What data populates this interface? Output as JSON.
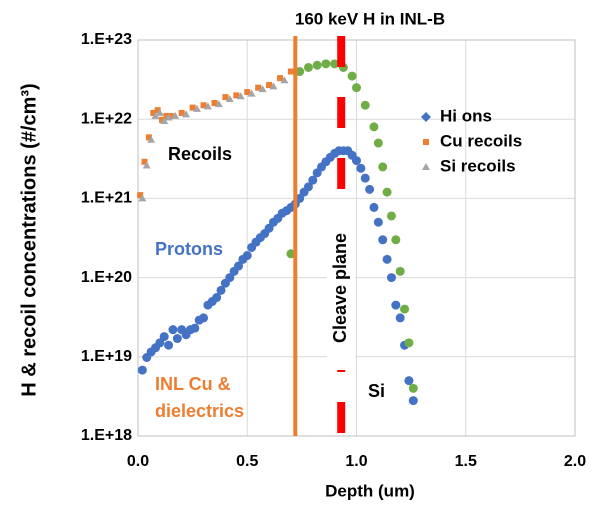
{
  "chart_data": {
    "type": "scatter",
    "title": "160 keV H in INL-B",
    "x_label": "Depth (um)",
    "y_label": "H & recoil concentrations (#/cm³)",
    "log_y": true,
    "grid": true,
    "legend": "right",
    "xlim": [
      0,
      2
    ],
    "ylim": [
      1e+18,
      1e+23
    ],
    "xticks": [
      {
        "value": 0,
        "label": "0.0"
      },
      0.5,
      {
        "value": 1,
        "label": "1.0"
      },
      1.5,
      {
        "value": 2,
        "label": "2.0"
      }
    ],
    "yticks": [
      {
        "value": 1e+18,
        "label": "1.E+18"
      },
      {
        "value": 1e+19,
        "label": "1.E+19"
      },
      {
        "value": 1e+20,
        "label": "1.E+20"
      },
      {
        "value": 1e+21,
        "label": "1.E+21"
      },
      {
        "value": 1e+22,
        "label": "1.E+22"
      },
      {
        "value": 1e+23,
        "label": "1.E+23"
      }
    ],
    "series": [
      {
        "name": "Hi ons",
        "color": "#4472c4",
        "marker": "circle",
        "x": [
          0.02,
          0.04,
          0.06,
          0.08,
          0.1,
          0.12,
          0.14,
          0.16,
          0.18,
          0.2,
          0.22,
          0.24,
          0.26,
          0.28,
          0.3,
          0.32,
          0.34,
          0.36,
          0.38,
          0.4,
          0.42,
          0.44,
          0.46,
          0.48,
          0.5,
          0.52,
          0.54,
          0.56,
          0.58,
          0.6,
          0.62,
          0.64,
          0.66,
          0.68,
          0.7,
          0.72,
          0.74,
          0.76,
          0.78,
          0.8,
          0.82,
          0.84,
          0.86,
          0.88,
          0.9,
          0.92,
          0.94,
          0.96,
          0.98,
          1.0,
          1.02,
          1.04,
          1.06,
          1.08,
          1.1,
          1.12,
          1.14,
          1.16,
          1.18,
          1.2,
          1.22,
          1.24,
          1.26
        ],
        "values": [
          6.8e+18,
          9.8e+18,
          1.15e+19,
          1.3e+19,
          1.5e+19,
          1.8e+19,
          1.4e+19,
          2.2e+19,
          1.7e+19,
          2.2e+19,
          1.9e+19,
          2.2e+19,
          2.3e+19,
          2.9e+19,
          3.1e+19,
          4.5e+19,
          5e+19,
          5.6e+19,
          6.9e+19,
          8.5e+19,
          1e+20,
          1.2e+20,
          1.4e+20,
          1.7e+20,
          1.9e+20,
          2.4e+20,
          2.8e+20,
          3.2e+20,
          3.6e+20,
          4.2e+20,
          5e+20,
          5.6e+20,
          6.5e+20,
          7e+20,
          7.7e+20,
          8.5e+20,
          1e+21,
          1.2e+21,
          1.4e+21,
          1.7e+21,
          2.1e+21,
          2.5e+21,
          2.9e+21,
          3.3e+21,
          3.7e+21,
          4e+21,
          4e+21,
          4e+21,
          3.5e+21,
          3e+21,
          2.4e+21,
          1.8e+21,
          1.3e+21,
          7.7e+20,
          5e+20,
          3e+20,
          1.7e+20,
          1e+20,
          4.5e+19,
          3.1e+19,
          1.4e+19,
          5e+18,
          2.8e+18
        ]
      },
      {
        "name": "Cu recoils",
        "color": "#ed7d31",
        "marker": "square",
        "x": [
          0.01,
          0.03,
          0.05,
          0.07,
          0.09,
          0.11,
          0.13,
          0.15,
          0.2,
          0.25,
          0.3,
          0.35,
          0.4,
          0.45,
          0.5,
          0.55,
          0.6,
          0.65,
          0.7
        ],
        "values": [
          1.1e+21,
          2.9e+21,
          5.9e+21,
          1.2e+22,
          1.3e+22,
          9.8e+21,
          1.1e+22,
          1.1e+22,
          1.2e+22,
          1.4e+22,
          1.5e+22,
          1.6e+22,
          1.9e+22,
          2e+22,
          2.2e+22,
          2.5e+22,
          2.7e+22,
          3.3e+22,
          4e+22
        ]
      },
      {
        "name": "Si recoils",
        "color": "#a5a5a5",
        "marker": "triangle",
        "x": [
          0.02,
          0.04,
          0.06,
          0.08,
          0.1,
          0.12,
          0.14,
          0.17,
          0.22,
          0.27,
          0.32,
          0.37,
          0.42,
          0.47,
          0.52,
          0.57,
          0.62,
          0.67
        ],
        "values": [
          1e+21,
          2.6e+21,
          5.5e+21,
          1.1e+22,
          1.2e+22,
          9.5e+21,
          1.05e+22,
          1.1e+22,
          1.15e+22,
          1.35e+22,
          1.45e+22,
          1.55e+22,
          1.8e+22,
          1.95e+22,
          2.1e+22,
          2.4e+22,
          2.6e+22,
          3.1e+22
        ]
      },
      {
        "color": "#70ad47",
        "marker": "circle",
        "x": [
          0.7,
          0.74,
          0.78,
          0.82,
          0.86,
          0.9,
          0.94,
          0.98,
          1.0,
          1.04,
          1.08,
          1.1,
          1.12,
          1.14,
          1.16,
          1.18,
          1.2,
          1.22,
          1.24,
          1.26
        ],
        "values": [
          2e+20,
          4e+22,
          4.5e+22,
          4.8e+22,
          5e+22,
          5e+22,
          4.5e+22,
          3.5e+22,
          2.5e+22,
          1.5e+22,
          8e+21,
          5e+21,
          2.5e+21,
          1.2e+21,
          6e+20,
          3e+20,
          1.2e+20,
          4e+19,
          1.5e+19,
          4e+18
        ]
      }
    ],
    "vlines": [
      {
        "x": 0.72,
        "color": "#ed7d31"
      },
      {
        "x": 0.93,
        "color": "#ff0000",
        "dashed": true
      }
    ],
    "annotations": [
      {
        "text": "Recoils",
        "color": "#000000"
      },
      {
        "text": "Protons",
        "color": "#4472c4"
      },
      {
        "text": "INL Cu &",
        "color": "#ed7d31"
      },
      {
        "text": "dielectrics",
        "color": "#ed7d31"
      },
      {
        "text": "Cleave plane",
        "color": "#000000"
      },
      {
        "text": "Si",
        "color": "#000000"
      }
    ]
  }
}
